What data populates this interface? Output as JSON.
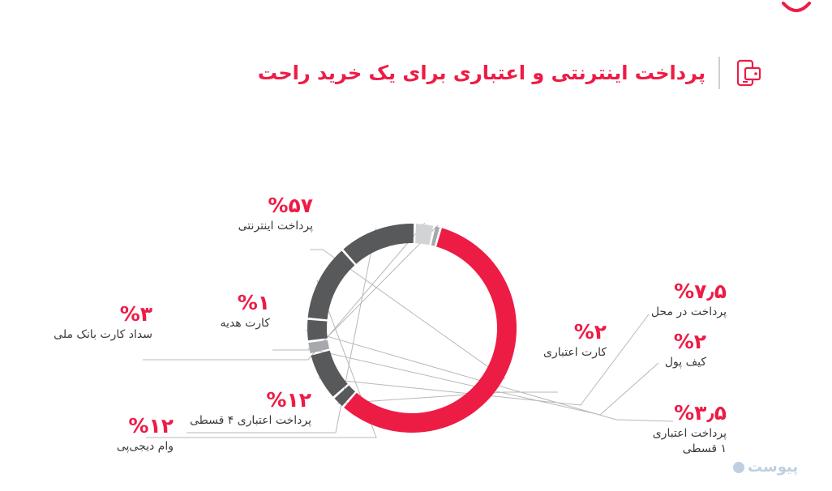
{
  "title": "پرداخت اینترنتی و اعتباری برای یک خرید راحت",
  "watermark": "پیوست",
  "colors": {
    "accent": "#ed1c45",
    "dark": "#58595b",
    "mid": "#a7a9ac",
    "light": "#d1d3d4",
    "text": "#3a3a3a"
  },
  "chart_data": {
    "type": "pie",
    "donut": true,
    "slices": [
      {
        "label": "پرداخت اینترنتی",
        "value": 57,
        "percent_text": "%۵۷",
        "color": "#ed1c45"
      },
      {
        "label": "کارت اعتباری",
        "value": 2,
        "percent_text": "%۲",
        "color": "#58595b"
      },
      {
        "label": "پرداخت در محل",
        "value": 7.5,
        "percent_text": "%۷٫۵",
        "color": "#58595b"
      },
      {
        "label": "کیف پول",
        "value": 2,
        "percent_text": "%۲",
        "color": "#a7a9ac"
      },
      {
        "label": "پرداخت اعتباری ۱ قسطی",
        "value": 3.5,
        "percent_text": "%۳٫۵",
        "color": "#58595b"
      },
      {
        "label": "وام دیجی‌پی",
        "value": 12,
        "percent_text": "%۱۲",
        "color": "#58595b"
      },
      {
        "label": "پرداخت اعتباری ۴ قسطی",
        "value": 12,
        "percent_text": "%۱۲",
        "color": "#58595b"
      },
      {
        "label": "سداد کارت بانک ملی",
        "value": 3,
        "percent_text": "%۳",
        "color": "#d1d3d4"
      },
      {
        "label": "کارت هدیه",
        "value": 1,
        "percent_text": "%۱",
        "color": "#a7a9ac"
      }
    ]
  }
}
